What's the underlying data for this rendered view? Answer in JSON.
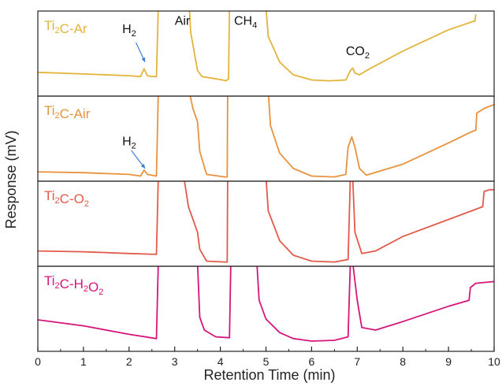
{
  "chart_data": {
    "type": "line",
    "xlabel": "Retention Time (min)",
    "ylabel": "Response (mV)",
    "xlim": [
      0,
      10
    ],
    "xticks": [
      "0",
      "1",
      "2",
      "3",
      "4",
      "5",
      "6",
      "7",
      "8",
      "9",
      "10"
    ],
    "panels": [
      {
        "name": "Ti2C-Ar",
        "label": {
          "base": "Ti",
          "sub": "2",
          "rest": "C-Ar",
          "sub2": "",
          "rest2": ""
        },
        "color": "#E3B43C",
        "annotations": [
          {
            "text": "H",
            "sub": "2",
            "x": 1.85,
            "y": 0.74
          },
          {
            "text": "Air",
            "sub": "",
            "x": 3.0,
            "y": 0.84
          },
          {
            "text": "CH",
            "sub": "4",
            "x": 4.3,
            "y": 0.84
          },
          {
            "text": "CO",
            "sub": "2",
            "x": 6.75,
            "y": 0.48
          }
        ],
        "arrow": {
          "from": [
            2.15,
            0.63
          ],
          "to": [
            2.35,
            0.4
          ]
        },
        "x": [
          0,
          1,
          2,
          2.25,
          2.33,
          2.4,
          2.5,
          2.6,
          2.64,
          2.66,
          3.32,
          3.35,
          3.5,
          3.6,
          4.05,
          4.12,
          4.18,
          4.2,
          4.21,
          5.0,
          5.05,
          5.3,
          5.6,
          6.0,
          6.4,
          6.75,
          6.85,
          6.9,
          6.95,
          7.05,
          7.2,
          8.0,
          9.0,
          9.55,
          9.58,
          9.6
        ],
        "y": [
          0.28,
          0.26,
          0.24,
          0.23,
          0.32,
          0.24,
          0.23,
          0.23,
          1.05,
          null,
          1.05,
          0.75,
          0.3,
          0.23,
          0.19,
          0.18,
          0.2,
          1.05,
          null,
          1.05,
          0.7,
          0.4,
          0.25,
          0.19,
          0.18,
          0.19,
          0.3,
          0.33,
          0.27,
          0.25,
          0.3,
          0.53,
          0.78,
          0.88,
          0.88,
          0.96
        ]
      },
      {
        "name": "Ti2C-Air",
        "label": {
          "base": "Ti",
          "sub": "2",
          "rest": "C-Air",
          "sub2": "",
          "rest2": ""
        },
        "color": "#E8923E",
        "annotations": [
          {
            "text": "H",
            "sub": "2",
            "x": 1.85,
            "y": 0.42
          }
        ],
        "arrow": {
          "from": [
            2.05,
            0.36
          ],
          "to": [
            2.35,
            0.15
          ]
        },
        "x": [
          0,
          1,
          2,
          2.25,
          2.33,
          2.4,
          2.6,
          2.64,
          2.66,
          3.32,
          3.4,
          3.5,
          3.55,
          3.7,
          4.1,
          4.15,
          4.16,
          4.17,
          5.05,
          5.1,
          5.3,
          5.6,
          6.0,
          6.5,
          6.75,
          6.8,
          6.88,
          6.95,
          7.05,
          7.2,
          8.0,
          9.0,
          9.5,
          9.6,
          9.62,
          9.8,
          10
        ],
        "y": [
          0.11,
          0.1,
          0.08,
          0.06,
          0.13,
          0.08,
          0.06,
          1.05,
          null,
          1.05,
          0.85,
          0.7,
          0.35,
          0.08,
          0.05,
          0.05,
          1.05,
          null,
          1.05,
          0.65,
          0.33,
          0.15,
          0.06,
          0.05,
          0.08,
          0.4,
          0.52,
          0.4,
          0.15,
          0.07,
          0.2,
          0.45,
          0.58,
          0.6,
          0.8,
          0.86,
          0.9
        ]
      },
      {
        "name": "Ti2C-O2",
        "label": {
          "base": "Ti",
          "sub": "2",
          "rest": "C-O",
          "sub2": "2",
          "rest2": ""
        },
        "color": "#E15A4A",
        "annotations": [],
        "arrow": null,
        "x": [
          0,
          1,
          2,
          2.6,
          2.64,
          2.66,
          3.2,
          3.3,
          3.4,
          3.5,
          3.55,
          3.7,
          4.1,
          4.15,
          4.16,
          4.17,
          5.0,
          5.05,
          5.3,
          5.6,
          6.0,
          6.5,
          6.8,
          6.85,
          6.88,
          6.9,
          6.95,
          7.1,
          7.4,
          8.0,
          9.0,
          9.75,
          9.78,
          9.9,
          10
        ],
        "y": [
          0.18,
          0.17,
          0.15,
          0.14,
          1.05,
          null,
          1.05,
          0.7,
          0.55,
          0.4,
          0.2,
          0.06,
          0.05,
          0.05,
          1.05,
          null,
          1.05,
          0.65,
          0.3,
          0.13,
          0.06,
          0.05,
          0.08,
          1.05,
          null,
          1.05,
          0.4,
          0.15,
          0.18,
          0.35,
          0.55,
          0.7,
          0.88,
          0.9,
          0.9
        ]
      },
      {
        "name": "Ti2C-H2O2",
        "label": {
          "base": "Ti",
          "sub": "2",
          "rest": "C-H",
          "sub2": "2",
          "rest2": "O2"
        },
        "color": "#D6157A",
        "annotations": [],
        "arrow": null,
        "x": [
          0,
          1,
          2,
          2.6,
          2.64,
          2.66,
          3.5,
          3.55,
          3.65,
          3.9,
          4.2,
          4.23,
          4.24,
          4.25,
          4.8,
          4.85,
          5.0,
          5.3,
          5.6,
          6.0,
          6.5,
          6.8,
          6.85,
          6.88,
          6.9,
          7.0,
          7.1,
          7.4,
          8.0,
          9.0,
          9.45,
          9.48,
          9.6,
          10
        ],
        "y": [
          0.37,
          0.3,
          0.2,
          0.15,
          1.05,
          null,
          1.05,
          0.4,
          0.25,
          0.17,
          0.16,
          1.05,
          null,
          1.05,
          1.05,
          0.6,
          0.38,
          0.22,
          0.15,
          0.12,
          0.13,
          0.17,
          1.05,
          null,
          1.05,
          0.6,
          0.28,
          0.25,
          0.35,
          0.53,
          0.6,
          0.75,
          0.8,
          0.82
        ]
      }
    ]
  }
}
